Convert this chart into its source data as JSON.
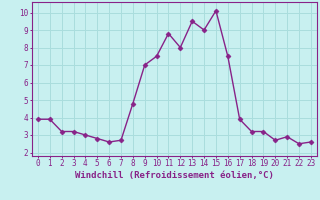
{
  "x": [
    0,
    1,
    2,
    3,
    4,
    5,
    6,
    7,
    8,
    9,
    10,
    11,
    12,
    13,
    14,
    15,
    16,
    17,
    18,
    19,
    20,
    21,
    22,
    23
  ],
  "y": [
    3.9,
    3.9,
    3.2,
    3.2,
    3.0,
    2.8,
    2.6,
    2.7,
    4.8,
    7.0,
    7.5,
    8.8,
    8.0,
    9.5,
    9.0,
    10.1,
    7.5,
    3.9,
    3.2,
    3.2,
    2.7,
    2.9,
    2.5,
    2.6
  ],
  "line_color": "#882288",
  "marker": "D",
  "markersize": 2.5,
  "linewidth": 1.0,
  "xlabel": "Windchill (Refroidissement éolien,°C)",
  "xlabel_fontsize": 6.5,
  "bg_color": "#c8f0f0",
  "grid_color": "#aadddd",
  "xlim": [
    -0.5,
    23.5
  ],
  "ylim": [
    1.8,
    10.6
  ],
  "yticks": [
    2,
    3,
    4,
    5,
    6,
    7,
    8,
    9,
    10
  ],
  "xticks": [
    0,
    1,
    2,
    3,
    4,
    5,
    6,
    7,
    8,
    9,
    10,
    11,
    12,
    13,
    14,
    15,
    16,
    17,
    18,
    19,
    20,
    21,
    22,
    23
  ],
  "tick_fontsize": 5.5,
  "tick_color": "#882288",
  "spine_color": "#882288"
}
